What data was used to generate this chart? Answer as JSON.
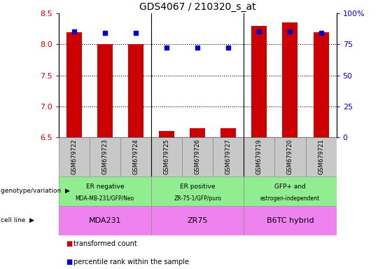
{
  "title": "GDS4067 / 210320_s_at",
  "samples": [
    "GSM679722",
    "GSM679723",
    "GSM679724",
    "GSM679725",
    "GSM679726",
    "GSM679727",
    "GSM679719",
    "GSM679720",
    "GSM679721"
  ],
  "red_values": [
    8.2,
    8.0,
    8.0,
    6.6,
    6.65,
    6.65,
    8.3,
    8.35,
    8.2
  ],
  "blue_values": [
    8.21,
    8.19,
    8.19,
    7.95,
    7.95,
    7.95,
    8.21,
    8.21,
    8.19
  ],
  "ylim": [
    6.5,
    8.5
  ],
  "y_left_ticks": [
    6.5,
    7.0,
    7.5,
    8.0,
    8.5
  ],
  "dotted_lines": [
    7.0,
    7.5,
    8.0
  ],
  "y_right_ticks": [
    0,
    25,
    50,
    75,
    100
  ],
  "y_right_tick_labels": [
    "0",
    "25",
    "50",
    "75",
    "100%"
  ],
  "group_starts": [
    0,
    3,
    6
  ],
  "group_ends": [
    3,
    6,
    9
  ],
  "group_labels_line1": [
    "ER negative",
    "ER positive",
    "GFP+ and"
  ],
  "group_labels_line2": [
    "MDA-MB-231/GFP/Neo",
    "ZR-75-1/GFP/puro",
    "estrogen-independent"
  ],
  "cell_line_labels": [
    "MDA231",
    "ZR75",
    "B6TC hybrid"
  ],
  "genotype_row_color": "#90EE90",
  "cell_line_row_color": "#EE82EE",
  "tick_label_bg": "#C8C8C8",
  "red_color": "#CC0000",
  "blue_color": "#0000CC",
  "bar_width": 0.5,
  "legend_items": [
    "transformed count",
    "percentile rank within the sample"
  ]
}
